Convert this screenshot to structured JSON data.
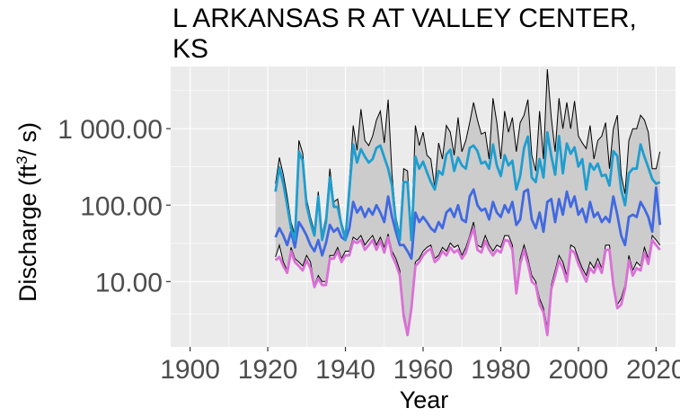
{
  "chart_data": {
    "type": "line",
    "title": "L ARKANSAS R AT VALLEY CENTER, KS",
    "xlabel": "Year",
    "ylabel_main": "Discharge (ft",
    "ylabel_sup": "3",
    "ylabel_tail": "/ s)",
    "y_scale": "log10",
    "xlim": [
      1895,
      2025
    ],
    "ylim": [
      1.4,
      6500
    ],
    "grid": true,
    "legend": "none",
    "x_ticks": [
      1900,
      1920,
      1940,
      1960,
      1980,
      2000,
      2020
    ],
    "y_ticks": [
      {
        "value": 10,
        "label": "10.00"
      },
      {
        "value": 100,
        "label": "100.00"
      },
      {
        "value": 1000,
        "label": "1 000.00"
      }
    ],
    "colors": {
      "panel": "#ebebeb",
      "grid": "#ffffff",
      "ribbon": "#cccccc",
      "envelope_line": "#000000",
      "max_series": "#1f9ecf",
      "mean_series": "#4169e1",
      "min_series": "#da70d6"
    },
    "x": [
      1922,
      1923,
      1924,
      1925,
      1926,
      1927,
      1928,
      1929,
      1930,
      1931,
      1932,
      1933,
      1934,
      1935,
      1936,
      1937,
      1938,
      1939,
      1940,
      1941,
      1942,
      1943,
      1944,
      1945,
      1946,
      1947,
      1948,
      1949,
      1950,
      1951,
      1952,
      1953,
      1954,
      1955,
      1956,
      1957,
      1958,
      1959,
      1960,
      1961,
      1962,
      1963,
      1964,
      1965,
      1966,
      1967,
      1968,
      1969,
      1970,
      1971,
      1972,
      1973,
      1974,
      1975,
      1976,
      1977,
      1978,
      1979,
      1980,
      1981,
      1982,
      1983,
      1984,
      1985,
      1986,
      1987,
      1988,
      1989,
      1990,
      1991,
      1992,
      1993,
      1994,
      1995,
      1996,
      1997,
      1998,
      1999,
      2000,
      2001,
      2002,
      2003,
      2004,
      2005,
      2006,
      2007,
      2008,
      2009,
      2010,
      2011,
      2012,
      2013,
      2014,
      2015,
      2016,
      2017,
      2018,
      2019,
      2020,
      2021
    ],
    "envelope": {
      "upper": [
        190,
        420,
        250,
        130,
        60,
        40,
        700,
        480,
        120,
        70,
        45,
        150,
        40,
        70,
        300,
        110,
        120,
        60,
        40,
        200,
        1100,
        520,
        1800,
        700,
        600,
        800,
        1300,
        1700,
        650,
        2400,
        250,
        70,
        40,
        300,
        280,
        40,
        1100,
        600,
        900,
        450,
        400,
        170,
        650,
        400,
        1100,
        900,
        450,
        1400,
        500,
        700,
        1200,
        2200,
        1300,
        850,
        900,
        400,
        2500,
        1200,
        400,
        1700,
        900,
        1400,
        500,
        1200,
        1500,
        2400,
        450,
        280,
        1700,
        400,
        6000,
        1400,
        500,
        2500,
        1000,
        2200,
        1000,
        2300,
        800,
        650,
        550,
        1100,
        400,
        700,
        800,
        1200,
        300,
        1000,
        1500,
        250,
        140,
        700,
        1000,
        1000,
        1500,
        1300,
        900,
        300,
        300,
        500
      ],
      "lower": [
        21,
        30,
        18,
        14,
        28,
        20,
        18,
        16,
        22,
        18,
        9,
        12,
        10,
        10,
        22,
        22,
        28,
        20,
        25,
        25,
        38,
        35,
        40,
        30,
        35,
        40,
        30,
        38,
        28,
        42,
        25,
        20,
        14,
        4,
        2.2,
        5,
        18,
        20,
        25,
        28,
        30,
        20,
        22,
        28,
        25,
        32,
        28,
        30,
        22,
        28,
        40,
        60,
        30,
        28,
        40,
        30,
        25,
        30,
        28,
        40,
        40,
        30,
        8,
        20,
        30,
        20,
        12,
        10,
        6,
        4.5,
        2.5,
        9,
        14,
        22,
        18,
        12,
        30,
        28,
        20,
        15,
        12,
        18,
        15,
        20,
        15,
        30,
        30,
        10,
        5,
        6,
        9,
        22,
        14,
        18,
        16,
        28,
        20,
        40,
        35,
        30
      ]
    },
    "series": [
      {
        "key": "max",
        "values": [
          150,
          310,
          190,
          100,
          50,
          35,
          500,
          380,
          100,
          60,
          40,
          130,
          35,
          60,
          230,
          95,
          95,
          55,
          35,
          160,
          620,
          360,
          540,
          430,
          360,
          400,
          560,
          600,
          420,
          300,
          180,
          60,
          35,
          200,
          200,
          35,
          430,
          300,
          370,
          270,
          200,
          160,
          280,
          250,
          460,
          530,
          280,
          420,
          330,
          300,
          560,
          600,
          510,
          350,
          370,
          300,
          620,
          330,
          240,
          450,
          330,
          380,
          160,
          240,
          560,
          790,
          230,
          200,
          400,
          230,
          900,
          440,
          250,
          800,
          260,
          640,
          470,
          570,
          320,
          400,
          160,
          350,
          290,
          350,
          240,
          250,
          180,
          510,
          440,
          160,
          100,
          260,
          300,
          300,
          620,
          430,
          310,
          220,
          190,
          200
        ]
      },
      {
        "key": "mean",
        "values": [
          38,
          50,
          40,
          30,
          45,
          28,
          60,
          50,
          40,
          30,
          25,
          35,
          22,
          32,
          55,
          45,
          50,
          38,
          35,
          50,
          110,
          80,
          95,
          70,
          90,
          75,
          100,
          80,
          60,
          130,
          70,
          45,
          30,
          30,
          25,
          20,
          80,
          60,
          70,
          60,
          50,
          45,
          60,
          50,
          80,
          90,
          70,
          100,
          65,
          60,
          130,
          160,
          100,
          85,
          90,
          65,
          110,
          80,
          70,
          100,
          80,
          110,
          55,
          65,
          150,
          160,
          65,
          50,
          80,
          45,
          110,
          120,
          60,
          120,
          75,
          150,
          95,
          130,
          75,
          90,
          60,
          110,
          70,
          80,
          60,
          70,
          60,
          130,
          75,
          40,
          30,
          70,
          75,
          70,
          110,
          90,
          70,
          45,
          170,
          55
        ]
      },
      {
        "key": "min",
        "values": [
          19,
          21,
          16,
          13,
          25,
          18,
          16,
          14,
          19,
          15,
          8.5,
          11,
          9,
          9,
          20,
          20,
          25,
          18,
          22,
          22,
          34,
          32,
          35,
          26,
          30,
          35,
          26,
          34,
          24,
          38,
          22,
          17,
          12,
          3.5,
          2,
          4.5,
          16,
          18,
          22,
          25,
          27,
          18,
          20,
          25,
          22,
          28,
          24,
          26,
          20,
          24,
          36,
          50,
          26,
          24,
          34,
          26,
          22,
          26,
          24,
          35,
          34,
          26,
          7,
          17,
          26,
          17,
          10,
          9,
          5,
          4,
          2,
          8,
          12,
          19,
          15,
          10,
          26,
          24,
          17,
          13,
          10,
          15,
          13,
          17,
          13,
          26,
          26,
          9,
          4.5,
          5,
          8,
          19,
          12,
          15,
          14,
          24,
          17,
          35,
          30,
          26
        ]
      }
    ]
  }
}
